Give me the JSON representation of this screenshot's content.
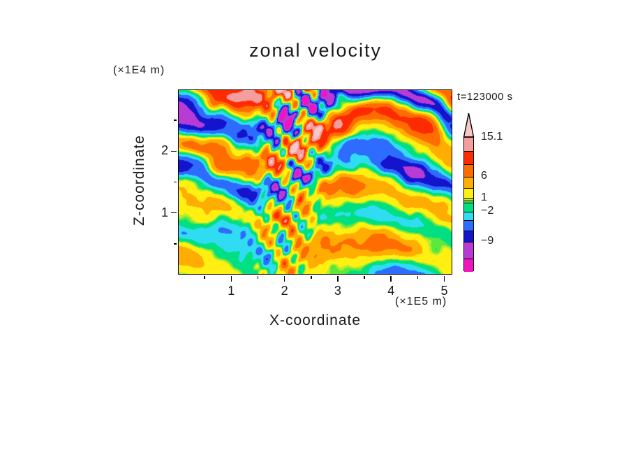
{
  "chart_data": {
    "type": "contour_heatmap",
    "title": "zonal velocity",
    "annotation": "t=123000 s",
    "x_axis": {
      "label": "X-coordinate",
      "unit": "(×1E5 m)",
      "min": 0,
      "max": 5.15,
      "major_ticks": [
        {
          "value": 1,
          "label": "1"
        },
        {
          "value": 2,
          "label": "2"
        },
        {
          "value": 3,
          "label": "3"
        },
        {
          "value": 4,
          "label": "4"
        },
        {
          "value": 5,
          "label": "5"
        }
      ],
      "minor_ticks": [
        0.5,
        1.5,
        2.5,
        3.5,
        4.5
      ]
    },
    "y_axis": {
      "label": "Z-coordinate",
      "unit": "(×1E4 m)",
      "min": 0,
      "max": 3.0,
      "major_ticks": [
        {
          "value": 1,
          "label": "1"
        },
        {
          "value": 2,
          "label": "2"
        }
      ],
      "minor_ticks": [
        0.5,
        1.5,
        2.5
      ]
    },
    "colorbar": {
      "top_value": 15.1,
      "bottom_value": -16,
      "labels": [
        {
          "text": "15.1",
          "value": 15.1
        },
        {
          "text": "6",
          "value": 6
        },
        {
          "text": "1",
          "value": 1
        },
        {
          "text": "−2",
          "value": -2
        },
        {
          "text": "−9",
          "value": -9
        }
      ]
    },
    "palette": {
      "bounds": [
        -16,
        -13,
        -9,
        -6.5,
        -4,
        -2,
        0,
        0.5,
        1,
        3.5,
        6,
        9,
        12,
        15.1
      ],
      "colors": [
        "#F013BE",
        "#B93BD6",
        "#1414CD",
        "#2E6BFF",
        "#30DCF2",
        "#00DF82",
        "#5FE83C",
        "#B5EE2E",
        "#FFF012",
        "#FFAD00",
        "#FF6D00",
        "#FF2B00",
        "#F59E9E"
      ],
      "overflow_color": "#F6C8C6"
    },
    "field_synthesis": {
      "layer_cycles": 6.2,
      "layer_phase_xwave": 2.2,
      "layer_amp_base": 2.5,
      "layer_amp_growth": 7.5,
      "blob_amp": 7.5,
      "blob_scale_x": 3.1,
      "blob_scale_y": 2.4,
      "braid_center_u": 0.38,
      "braid_tilt": 0.06,
      "braid_width_u": 0.11,
      "braid_amp": 11.0,
      "braid_fine_amp": 5.0,
      "braid_wave_x": 9.0,
      "braid_wave_y": 4.5,
      "fine_wave_x": 20.0,
      "fine_wave_y": 9.0,
      "noise_scale_x": 5.5,
      "noise_scale_y": 3.5,
      "noise_amp": 2.0,
      "bottom_jet_amp": 4.5,
      "bottom_jet_w": 0.18,
      "bottom_jet_width": 0.11
    }
  }
}
